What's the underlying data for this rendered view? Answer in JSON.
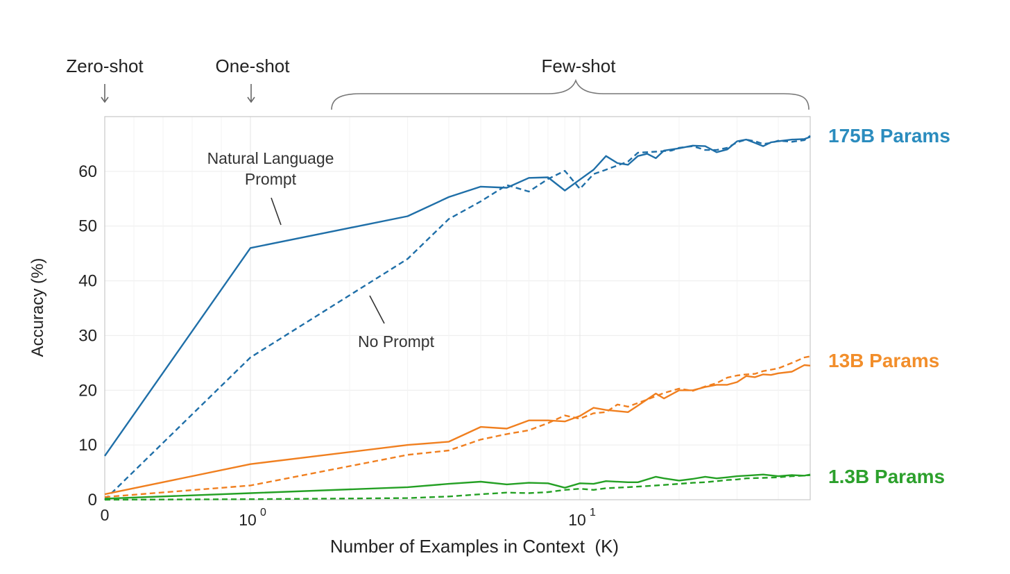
{
  "chart_data": {
    "type": "line",
    "xlabel": "Number of Examples in Context  (K)",
    "ylabel": "Accuracy (%)",
    "xscale": "symlog",
    "xlim": [
      0,
      50
    ],
    "ylim": [
      0,
      70
    ],
    "yticks": [
      0,
      10,
      20,
      30,
      40,
      50,
      60
    ],
    "xticks": [
      {
        "value": 0,
        "base": "0",
        "exp": ""
      },
      {
        "value": 1,
        "base": "10",
        "exp": "0"
      },
      {
        "value": 10,
        "base": "10",
        "exp": "1"
      }
    ],
    "grid": true,
    "top_labels": {
      "zero_shot": "Zero-shot",
      "one_shot": "One-shot",
      "few_shot": "Few-shot"
    },
    "annotations": {
      "nl_prompt_line1": "Natural Language",
      "nl_prompt_line2": "Prompt",
      "no_prompt": "No Prompt"
    },
    "model_labels": [
      {
        "text": "175B Params",
        "color": "#2b8cbe"
      },
      {
        "text": "13B Params",
        "color": "#f28e2b"
      },
      {
        "text": "1.3B Params",
        "color": "#2ca02c"
      }
    ],
    "colors": {
      "175B": "#1f6fa8",
      "13B": "#f07f1f",
      "1.3B": "#24a024"
    },
    "series": [
      {
        "model": "175B",
        "style": "solid",
        "points": [
          [
            0,
            8
          ],
          [
            1,
            46
          ],
          [
            3,
            51.8
          ],
          [
            4,
            55.3
          ],
          [
            5,
            57.2
          ],
          [
            6,
            57
          ],
          [
            7,
            58.8
          ],
          [
            8,
            58.9
          ],
          [
            9,
            56.5
          ],
          [
            10,
            58.5
          ],
          [
            11,
            60.3
          ],
          [
            12,
            62.8
          ],
          [
            13,
            61.5
          ],
          [
            14,
            61.2
          ],
          [
            15,
            62.8
          ],
          [
            16,
            63.2
          ],
          [
            17,
            62.4
          ],
          [
            18,
            63.8
          ],
          [
            20,
            64.2
          ],
          [
            22,
            64.7
          ],
          [
            24,
            64.6
          ],
          [
            26,
            63.5
          ],
          [
            28,
            64
          ],
          [
            30,
            65.5
          ],
          [
            32,
            65.8
          ],
          [
            34,
            65.2
          ],
          [
            36,
            64.6
          ],
          [
            38,
            65.3
          ],
          [
            40,
            65.5
          ],
          [
            44,
            65.8
          ],
          [
            48,
            65.9
          ],
          [
            50,
            66.3
          ]
        ]
      },
      {
        "model": "175B",
        "style": "dashed",
        "points": [
          [
            0,
            0
          ],
          [
            1,
            26
          ],
          [
            3,
            44
          ],
          [
            4,
            51.3
          ],
          [
            5,
            54.5
          ],
          [
            6,
            57.5
          ],
          [
            7,
            56.3
          ],
          [
            8,
            58.6
          ],
          [
            9,
            60.1
          ],
          [
            10,
            56.8
          ],
          [
            11,
            59.5
          ],
          [
            12,
            60.3
          ],
          [
            14,
            61.8
          ],
          [
            15,
            63.4
          ],
          [
            17,
            63.6
          ],
          [
            19,
            63.8
          ],
          [
            20,
            64.3
          ],
          [
            22,
            64.6
          ],
          [
            24,
            63.9
          ],
          [
            26,
            63.9
          ],
          [
            28,
            64.3
          ],
          [
            30,
            65.3
          ],
          [
            32,
            65.8
          ],
          [
            34,
            65.5
          ],
          [
            36,
            65
          ],
          [
            38,
            65.2
          ],
          [
            40,
            65.6
          ],
          [
            44,
            65.4
          ],
          [
            48,
            65.7
          ],
          [
            50,
            66.5
          ]
        ]
      },
      {
        "model": "13B",
        "style": "solid",
        "points": [
          [
            0,
            1
          ],
          [
            1,
            6.5
          ],
          [
            3,
            10
          ],
          [
            4,
            10.6
          ],
          [
            5,
            13.3
          ],
          [
            6,
            13
          ],
          [
            7,
            14.5
          ],
          [
            8,
            14.5
          ],
          [
            9,
            14.3
          ],
          [
            10,
            15.3
          ],
          [
            11,
            16.8
          ],
          [
            12,
            16.4
          ],
          [
            14,
            16
          ],
          [
            15,
            17.2
          ],
          [
            17,
            19.4
          ],
          [
            18,
            18.5
          ],
          [
            20,
            20
          ],
          [
            22,
            20
          ],
          [
            24,
            20.6
          ],
          [
            26,
            21
          ],
          [
            28,
            21
          ],
          [
            30,
            21.5
          ],
          [
            32,
            22.6
          ],
          [
            34,
            22.4
          ],
          [
            36,
            22.9
          ],
          [
            38,
            22.8
          ],
          [
            40,
            23.1
          ],
          [
            44,
            23.4
          ],
          [
            48,
            24.6
          ],
          [
            50,
            24.5
          ]
        ]
      },
      {
        "model": "13B",
        "style": "dashed",
        "points": [
          [
            0,
            0.5
          ],
          [
            1,
            2.6
          ],
          [
            3,
            8.2
          ],
          [
            4,
            9
          ],
          [
            5,
            11
          ],
          [
            6,
            12
          ],
          [
            7,
            12.7
          ],
          [
            8,
            14
          ],
          [
            9,
            15.4
          ],
          [
            10,
            14.8
          ],
          [
            11,
            15.8
          ],
          [
            12,
            16
          ],
          [
            13,
            17.4
          ],
          [
            14,
            17
          ],
          [
            16,
            18.3
          ],
          [
            18,
            19.5
          ],
          [
            20,
            20.3
          ],
          [
            22,
            19.9
          ],
          [
            24,
            20.7
          ],
          [
            26,
            21.3
          ],
          [
            28,
            22.3
          ],
          [
            30,
            22.7
          ],
          [
            32,
            22.9
          ],
          [
            34,
            23
          ],
          [
            36,
            23.5
          ],
          [
            40,
            24
          ],
          [
            44,
            25
          ],
          [
            48,
            26
          ],
          [
            50,
            26.2
          ]
        ]
      },
      {
        "model": "1.3B",
        "style": "solid",
        "points": [
          [
            0,
            0.2
          ],
          [
            1,
            1.2
          ],
          [
            3,
            2.3
          ],
          [
            4,
            2.9
          ],
          [
            5,
            3.3
          ],
          [
            6,
            2.8
          ],
          [
            7,
            3.1
          ],
          [
            8,
            3
          ],
          [
            9,
            2.2
          ],
          [
            10,
            3
          ],
          [
            11,
            2.9
          ],
          [
            12,
            3.4
          ],
          [
            14,
            3.2
          ],
          [
            15,
            3.2
          ],
          [
            17,
            4.2
          ],
          [
            18,
            3.9
          ],
          [
            20,
            3.5
          ],
          [
            22,
            3.8
          ],
          [
            24,
            4.2
          ],
          [
            26,
            3.9
          ],
          [
            28,
            4.1
          ],
          [
            30,
            4.3
          ],
          [
            32,
            4.4
          ],
          [
            36,
            4.6
          ],
          [
            40,
            4.3
          ],
          [
            44,
            4.5
          ],
          [
            48,
            4.4
          ],
          [
            50,
            4.6
          ]
        ]
      },
      {
        "model": "1.3B",
        "style": "dashed",
        "points": [
          [
            0,
            0
          ],
          [
            1,
            0.1
          ],
          [
            3,
            0.3
          ],
          [
            4,
            0.6
          ],
          [
            5,
            1
          ],
          [
            6,
            1.3
          ],
          [
            7,
            1.2
          ],
          [
            8,
            1.4
          ],
          [
            9,
            1.8
          ],
          [
            10,
            2
          ],
          [
            11,
            1.8
          ],
          [
            12,
            2.1
          ],
          [
            14,
            2.3
          ],
          [
            16,
            2.5
          ],
          [
            18,
            2.7
          ],
          [
            20,
            2.9
          ],
          [
            22,
            3.1
          ],
          [
            24,
            3.2
          ],
          [
            26,
            3.4
          ],
          [
            28,
            3.6
          ],
          [
            30,
            3.7
          ],
          [
            32,
            3.9
          ],
          [
            36,
            4
          ],
          [
            40,
            4.1
          ],
          [
            44,
            4.3
          ],
          [
            48,
            4.4
          ],
          [
            50,
            4.5
          ]
        ]
      }
    ]
  }
}
